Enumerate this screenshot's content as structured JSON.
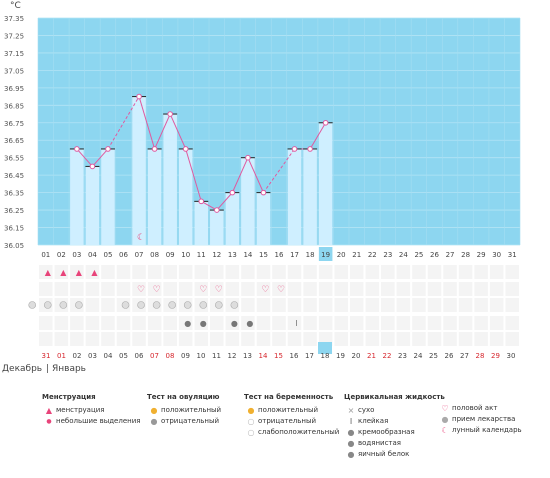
{
  "chart_data": {
    "type": "line",
    "y_unit": "°C",
    "y_ticks": [
      "37.35",
      "37.25",
      "37.15",
      "37.05",
      "36.95",
      "36.85",
      "36.75",
      "36.65",
      "36.55",
      "36.45",
      "36.35",
      "36.25",
      "36.15",
      "36.05"
    ],
    "ylim": [
      36.05,
      37.35
    ],
    "x_labels": [
      "01",
      "02",
      "03",
      "04",
      "05",
      "06",
      "07",
      "08",
      "09",
      "10",
      "11",
      "12",
      "13",
      "14",
      "15",
      "16",
      "17",
      "18",
      "19",
      "20",
      "21",
      "22",
      "23",
      "24",
      "25",
      "26",
      "27",
      "28",
      "29",
      "30",
      "31"
    ],
    "highlight_day": "19",
    "temperatures": [
      null,
      null,
      36.6,
      36.5,
      36.6,
      null,
      36.9,
      36.6,
      36.8,
      36.6,
      36.3,
      36.25,
      36.35,
      36.55,
      36.35,
      null,
      36.6,
      36.6,
      36.75,
      null,
      null,
      null,
      null,
      null,
      null,
      null,
      null,
      null,
      null,
      null,
      null
    ],
    "grid": true
  },
  "calendar": {
    "days": [
      {
        "label": "31",
        "red": true
      },
      {
        "label": "01",
        "red": true
      },
      {
        "label": "02",
        "red": false
      },
      {
        "label": "03",
        "red": false
      },
      {
        "label": "04",
        "red": false
      },
      {
        "label": "05",
        "red": false
      },
      {
        "label": "06",
        "red": false
      },
      {
        "label": "07",
        "red": true
      },
      {
        "label": "08",
        "red": true
      },
      {
        "label": "09",
        "red": false
      },
      {
        "label": "10",
        "red": false
      },
      {
        "label": "11",
        "red": false
      },
      {
        "label": "12",
        "red": false
      },
      {
        "label": "13",
        "red": false
      },
      {
        "label": "14",
        "red": true
      },
      {
        "label": "15",
        "red": true
      },
      {
        "label": "16",
        "red": false
      },
      {
        "label": "17",
        "red": false
      },
      {
        "label": "18",
        "red": false,
        "highlight": true
      },
      {
        "label": "19",
        "red": false
      },
      {
        "label": "20",
        "red": false
      },
      {
        "label": "21",
        "red": true
      },
      {
        "label": "22",
        "red": true
      },
      {
        "label": "23",
        "red": false
      },
      {
        "label": "24",
        "red": false
      },
      {
        "label": "25",
        "red": false
      },
      {
        "label": "26",
        "red": false
      },
      {
        "label": "27",
        "red": false
      },
      {
        "label": "28",
        "red": true
      },
      {
        "label": "29",
        "red": true
      },
      {
        "label": "30",
        "red": false
      }
    ],
    "month_prev": "Декабрь",
    "month_current": "Январь"
  },
  "rows": {
    "menstruation": [
      1,
      2,
      3,
      4
    ],
    "sex": [
      7,
      8,
      11,
      12,
      15,
      16
    ],
    "pregnancy_test": [
      0,
      1,
      2,
      3,
      6,
      7,
      8,
      9,
      10,
      11,
      12,
      13
    ],
    "fluid": [
      {
        "day": 10,
        "type": "drop"
      },
      {
        "day": 11,
        "type": "drop"
      },
      {
        "day": 13,
        "type": "cream"
      },
      {
        "day": 14,
        "type": "drop"
      },
      {
        "day": 17,
        "type": "sticky"
      }
    ],
    "moon_day": 6
  },
  "legend": {
    "menstruation": {
      "title": "Менструация",
      "items": [
        "менструация",
        "небольшие выделения"
      ]
    },
    "ovulation": {
      "title": "Тест на овуляцию",
      "items": [
        "положительный",
        "отрицательный"
      ]
    },
    "pregnancy": {
      "title": "Тест на беременность",
      "items": [
        "положительный",
        "отрицательный",
        "слабоположительный"
      ]
    },
    "fluid": {
      "title": "Цервикальная жидкость",
      "items": [
        "сухо",
        "клейкая",
        "кремообразная",
        "водянистая",
        "яичный белок"
      ]
    },
    "other": {
      "items": [
        "половой акт",
        "прием лекарства",
        "лунный календарь"
      ]
    }
  },
  "colors": {
    "plot_bg": "#8dd6f0",
    "bar": "#cfefff",
    "line": "#e05aa0",
    "accent": "#e8447a",
    "red_day": "#d6262d"
  }
}
